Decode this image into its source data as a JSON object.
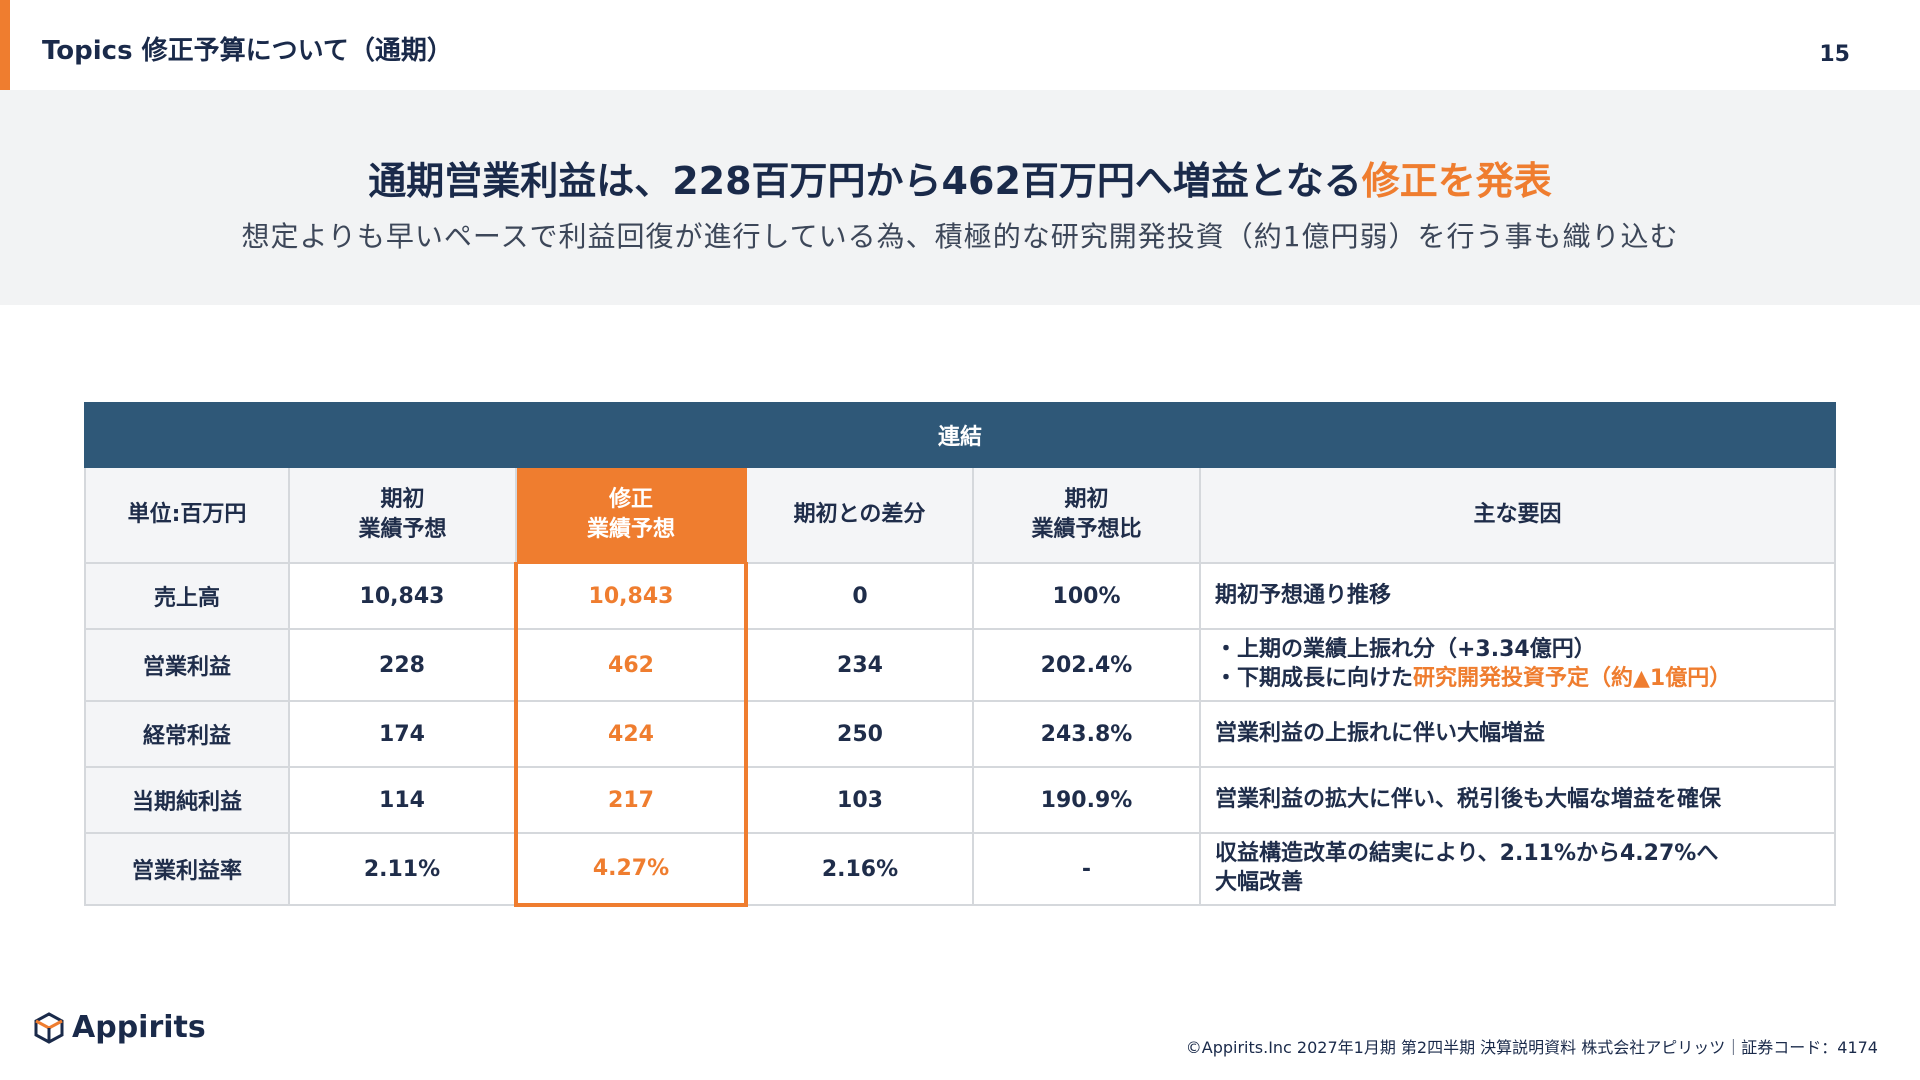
{
  "header": {
    "topic_title": "Topics 修正予算について（通期）",
    "page_number": "15"
  },
  "banner": {
    "headline_main": "通期営業利益は、228百万円から462百万円へ増益となる",
    "headline_accent": "修正を発表",
    "subline": "想定よりも早いペースで利益回復が進行している為、積極的な研究開発投資（約1億円弱）を行う事も織り込む"
  },
  "table": {
    "group_header": "連結",
    "columns": {
      "unit": "単位:百万円",
      "initial_1": "期初",
      "initial_2": "業績予想",
      "revised_1": "修正",
      "revised_2": "業績予想",
      "diff": "期初との差分",
      "ratio_1": "期初",
      "ratio_2": "業績予想比",
      "reason": "主な要因"
    },
    "rows": [
      {
        "label": "売上高",
        "initial": "10,843",
        "revised": "10,843",
        "diff": "0",
        "ratio": "100%",
        "reason": "期初予想通り推移"
      },
      {
        "label": "営業利益",
        "initial": "228",
        "revised": "462",
        "diff": "234",
        "ratio": "202.4%",
        "reason_line1": "・上期の業績上振れ分（+3.34億円）",
        "reason_line2_pre": "・下期成長に向けた",
        "reason_line2_accent": "研究開発投資予定（約▲1億円）"
      },
      {
        "label": "経常利益",
        "initial": "174",
        "revised": "424",
        "diff": "250",
        "ratio": "243.8%",
        "reason": "営業利益の上振れに伴い大幅増益"
      },
      {
        "label": "当期純利益",
        "initial": "114",
        "revised": "217",
        "diff": "103",
        "ratio": "190.9%",
        "reason": "営業利益の拡大に伴い、税引後も大幅な増益を確保"
      },
      {
        "label": "営業利益率",
        "initial": "2.11%",
        "revised": "4.27%",
        "diff": "2.16%",
        "ratio": "-",
        "reason_line1": "収益構造改革の結実により、2.11%から4.27%へ",
        "reason_line2": "大幅改善"
      }
    ]
  },
  "footer": {
    "logo_text": "Appirits",
    "copyright": "©Appirits.Inc 2027年1月期 第2四半期 決算説明資料 株式会社アピリッツ｜証券コード：4174"
  },
  "colors": {
    "accent": "#ef7d2f",
    "header_navy": "#2f5878",
    "text_navy": "#1a2a4a"
  }
}
